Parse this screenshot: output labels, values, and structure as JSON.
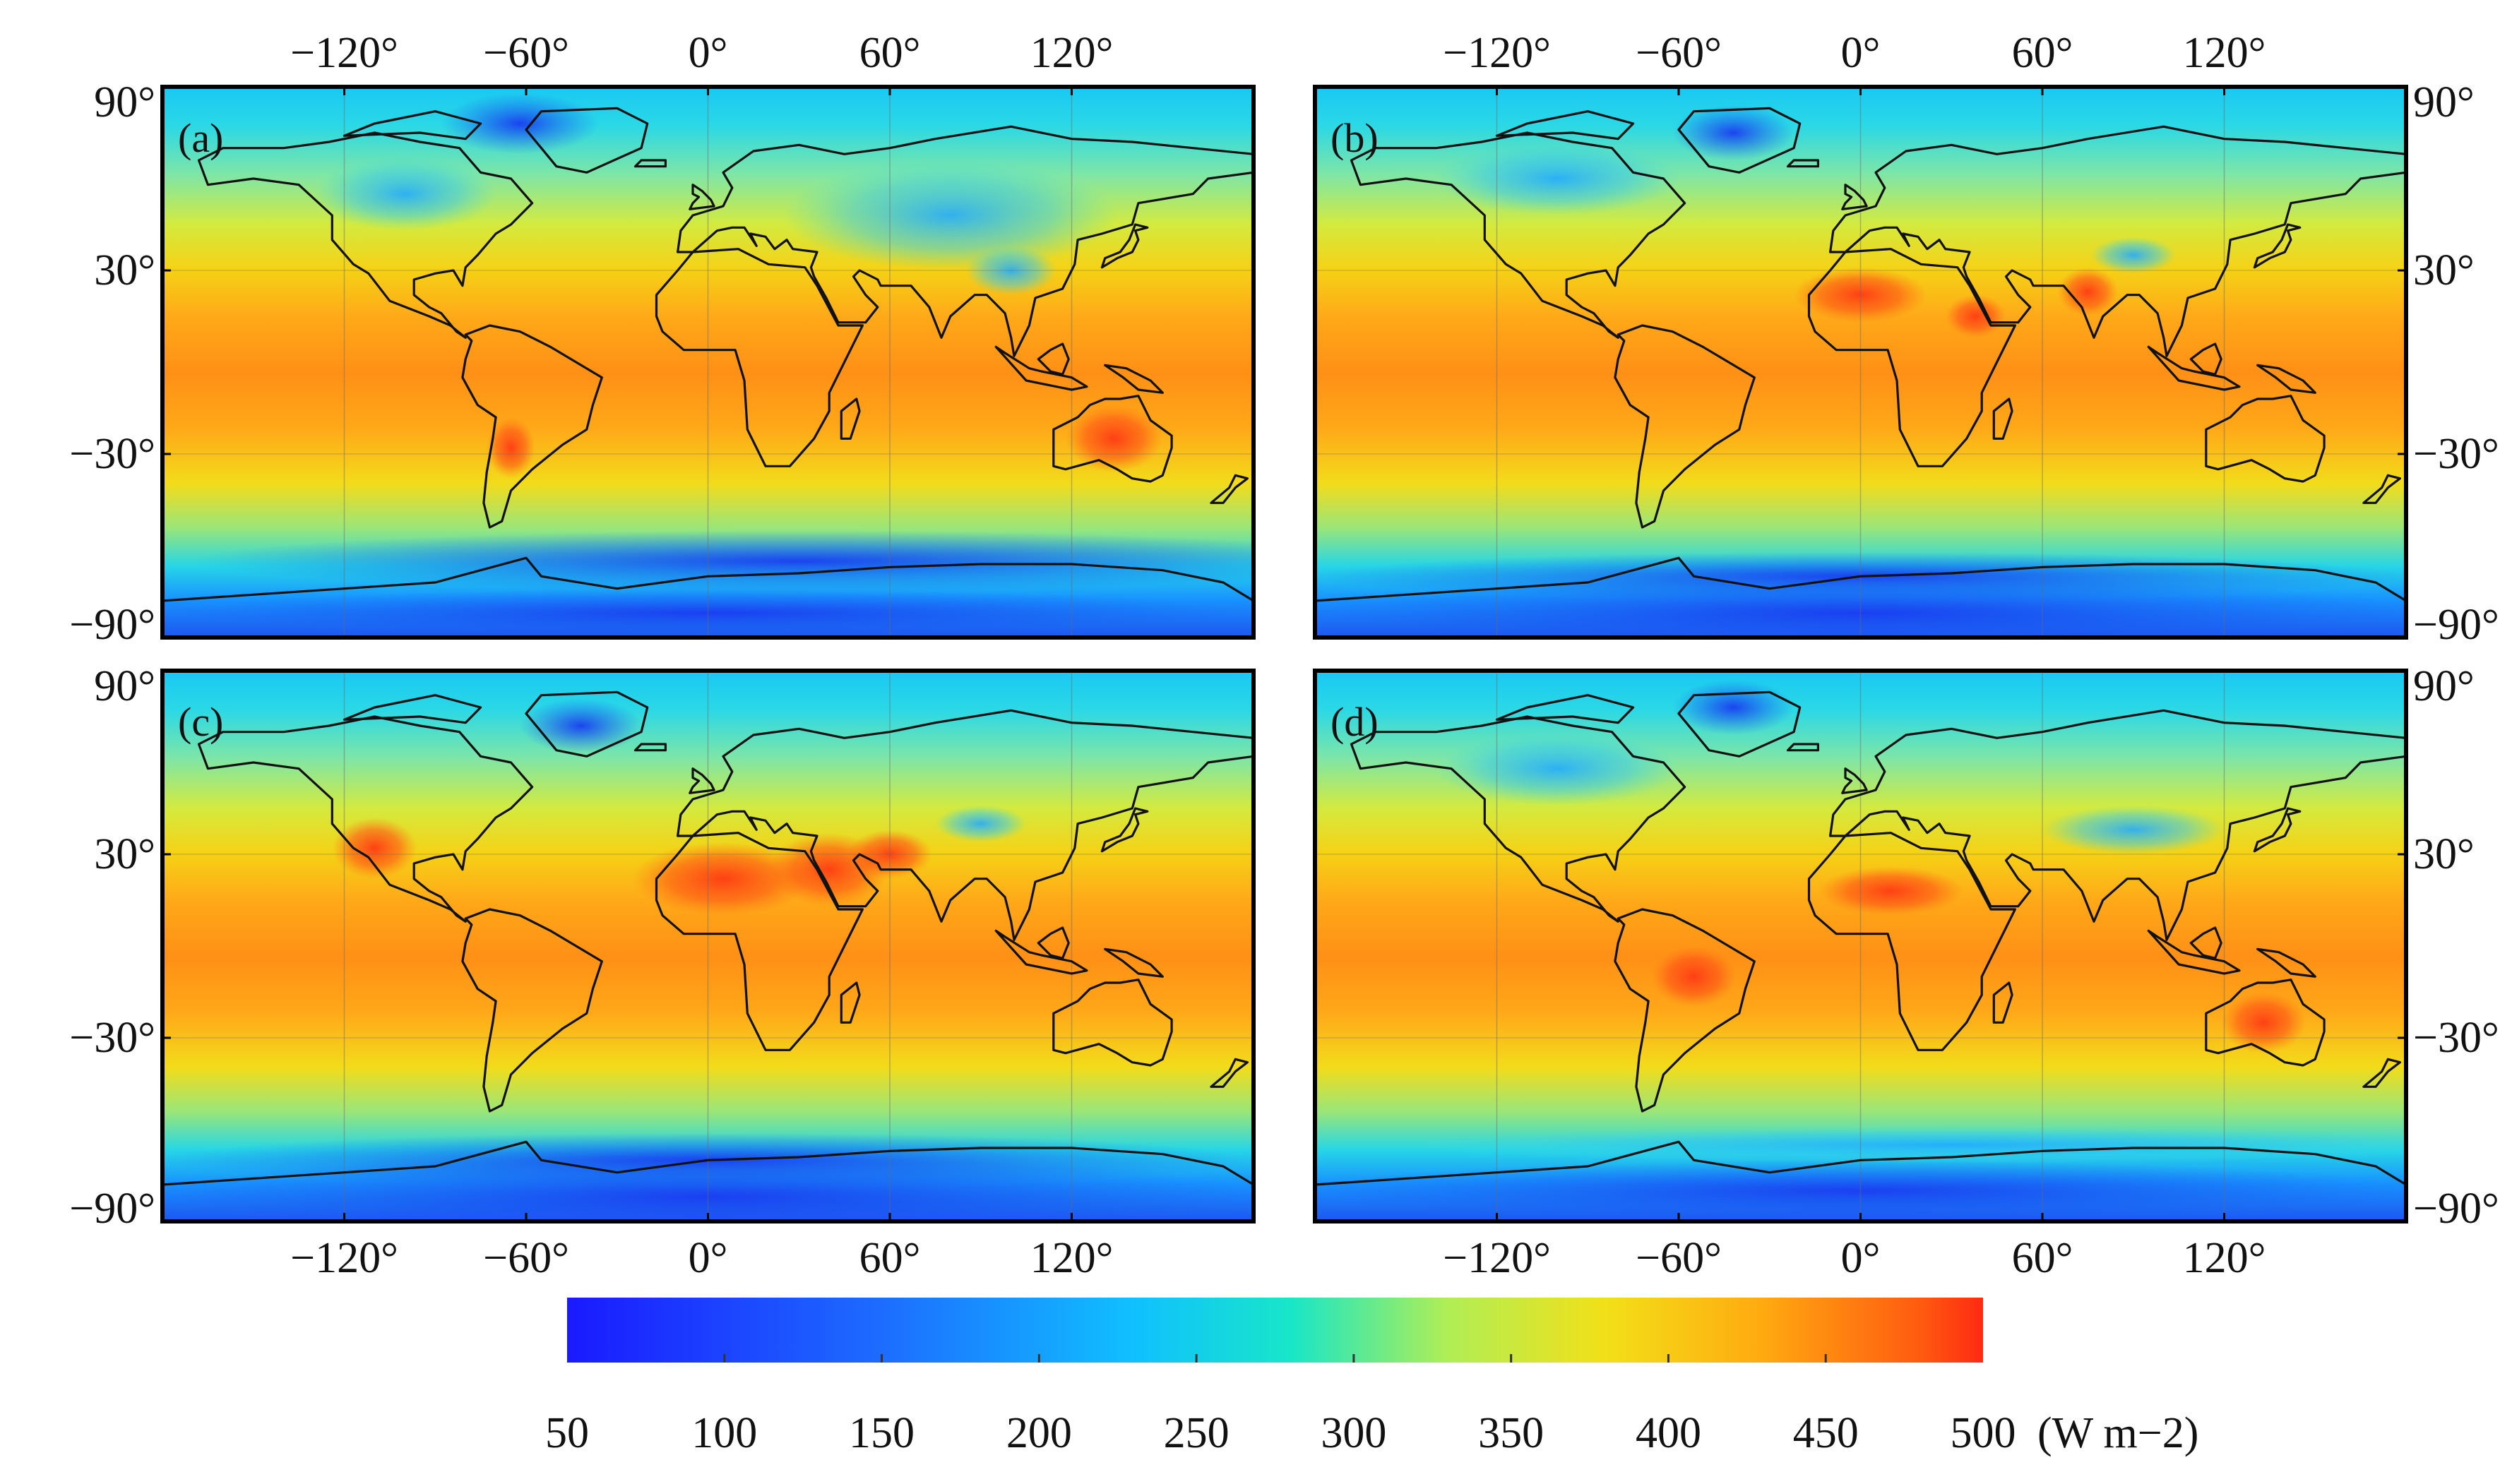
{
  "figure": {
    "colorbar": {
      "ticks": [
        "50",
        "100",
        "150",
        "200",
        "250",
        "300",
        "350",
        "400",
        "450",
        "500"
      ],
      "unit_label": "(W m−2)",
      "range": [
        50,
        500
      ],
      "stops": [
        {
          "value": 50,
          "color": "#1a1aff"
        },
        {
          "value": 150,
          "color": "#1d6cff"
        },
        {
          "value": 230,
          "color": "#10c0ff"
        },
        {
          "value": 280,
          "color": "#18e6c8"
        },
        {
          "value": 330,
          "color": "#b0ee55"
        },
        {
          "value": 380,
          "color": "#f2e018"
        },
        {
          "value": 430,
          "color": "#ffaa10"
        },
        {
          "value": 480,
          "color": "#ff5a10"
        },
        {
          "value": 500,
          "color": "#ff2a12"
        }
      ]
    },
    "longitude_ticks": [
      "−120°",
      "−60°",
      "0°",
      "60°",
      "120°"
    ],
    "latitude_ticks": [
      "90°",
      "30°",
      "−30°",
      "−90°"
    ],
    "panels": [
      {
        "label": "(a)"
      },
      {
        "label": "(b)"
      },
      {
        "label": "(c)"
      },
      {
        "label": "(d)"
      }
    ]
  }
}
